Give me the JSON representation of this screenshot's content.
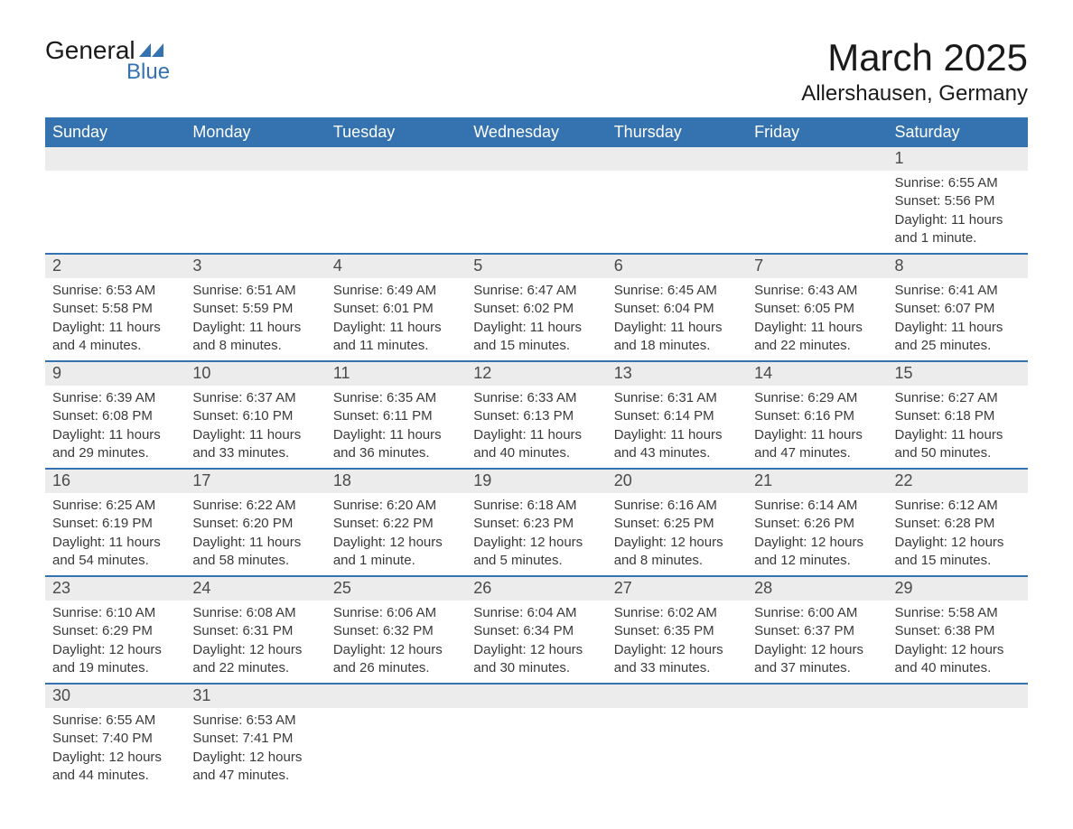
{
  "brand": {
    "name_a": "General",
    "name_b": "Blue",
    "icon_color": "#3572b0"
  },
  "title": "March 2025",
  "location": "Allershausen, Germany",
  "colors": {
    "header_bg": "#3572b0",
    "header_text": "#ffffff",
    "daynum_bg": "#ececec",
    "border": "#3572b0"
  },
  "weekdays": [
    "Sunday",
    "Monday",
    "Tuesday",
    "Wednesday",
    "Thursday",
    "Friday",
    "Saturday"
  ],
  "weeks": [
    [
      {
        "n": "",
        "blank": true
      },
      {
        "n": "",
        "blank": true
      },
      {
        "n": "",
        "blank": true
      },
      {
        "n": "",
        "blank": true
      },
      {
        "n": "",
        "blank": true
      },
      {
        "n": "",
        "blank": true
      },
      {
        "n": "1",
        "sunrise": "Sunrise: 6:55 AM",
        "sunset": "Sunset: 5:56 PM",
        "day1": "Daylight: 11 hours",
        "day2": "and 1 minute."
      }
    ],
    [
      {
        "n": "2",
        "sunrise": "Sunrise: 6:53 AM",
        "sunset": "Sunset: 5:58 PM",
        "day1": "Daylight: 11 hours",
        "day2": "and 4 minutes."
      },
      {
        "n": "3",
        "sunrise": "Sunrise: 6:51 AM",
        "sunset": "Sunset: 5:59 PM",
        "day1": "Daylight: 11 hours",
        "day2": "and 8 minutes."
      },
      {
        "n": "4",
        "sunrise": "Sunrise: 6:49 AM",
        "sunset": "Sunset: 6:01 PM",
        "day1": "Daylight: 11 hours",
        "day2": "and 11 minutes."
      },
      {
        "n": "5",
        "sunrise": "Sunrise: 6:47 AM",
        "sunset": "Sunset: 6:02 PM",
        "day1": "Daylight: 11 hours",
        "day2": "and 15 minutes."
      },
      {
        "n": "6",
        "sunrise": "Sunrise: 6:45 AM",
        "sunset": "Sunset: 6:04 PM",
        "day1": "Daylight: 11 hours",
        "day2": "and 18 minutes."
      },
      {
        "n": "7",
        "sunrise": "Sunrise: 6:43 AM",
        "sunset": "Sunset: 6:05 PM",
        "day1": "Daylight: 11 hours",
        "day2": "and 22 minutes."
      },
      {
        "n": "8",
        "sunrise": "Sunrise: 6:41 AM",
        "sunset": "Sunset: 6:07 PM",
        "day1": "Daylight: 11 hours",
        "day2": "and 25 minutes."
      }
    ],
    [
      {
        "n": "9",
        "sunrise": "Sunrise: 6:39 AM",
        "sunset": "Sunset: 6:08 PM",
        "day1": "Daylight: 11 hours",
        "day2": "and 29 minutes."
      },
      {
        "n": "10",
        "sunrise": "Sunrise: 6:37 AM",
        "sunset": "Sunset: 6:10 PM",
        "day1": "Daylight: 11 hours",
        "day2": "and 33 minutes."
      },
      {
        "n": "11",
        "sunrise": "Sunrise: 6:35 AM",
        "sunset": "Sunset: 6:11 PM",
        "day1": "Daylight: 11 hours",
        "day2": "and 36 minutes."
      },
      {
        "n": "12",
        "sunrise": "Sunrise: 6:33 AM",
        "sunset": "Sunset: 6:13 PM",
        "day1": "Daylight: 11 hours",
        "day2": "and 40 minutes."
      },
      {
        "n": "13",
        "sunrise": "Sunrise: 6:31 AM",
        "sunset": "Sunset: 6:14 PM",
        "day1": "Daylight: 11 hours",
        "day2": "and 43 minutes."
      },
      {
        "n": "14",
        "sunrise": "Sunrise: 6:29 AM",
        "sunset": "Sunset: 6:16 PM",
        "day1": "Daylight: 11 hours",
        "day2": "and 47 minutes."
      },
      {
        "n": "15",
        "sunrise": "Sunrise: 6:27 AM",
        "sunset": "Sunset: 6:18 PM",
        "day1": "Daylight: 11 hours",
        "day2": "and 50 minutes."
      }
    ],
    [
      {
        "n": "16",
        "sunrise": "Sunrise: 6:25 AM",
        "sunset": "Sunset: 6:19 PM",
        "day1": "Daylight: 11 hours",
        "day2": "and 54 minutes."
      },
      {
        "n": "17",
        "sunrise": "Sunrise: 6:22 AM",
        "sunset": "Sunset: 6:20 PM",
        "day1": "Daylight: 11 hours",
        "day2": "and 58 minutes."
      },
      {
        "n": "18",
        "sunrise": "Sunrise: 6:20 AM",
        "sunset": "Sunset: 6:22 PM",
        "day1": "Daylight: 12 hours",
        "day2": "and 1 minute."
      },
      {
        "n": "19",
        "sunrise": "Sunrise: 6:18 AM",
        "sunset": "Sunset: 6:23 PM",
        "day1": "Daylight: 12 hours",
        "day2": "and 5 minutes."
      },
      {
        "n": "20",
        "sunrise": "Sunrise: 6:16 AM",
        "sunset": "Sunset: 6:25 PM",
        "day1": "Daylight: 12 hours",
        "day2": "and 8 minutes."
      },
      {
        "n": "21",
        "sunrise": "Sunrise: 6:14 AM",
        "sunset": "Sunset: 6:26 PM",
        "day1": "Daylight: 12 hours",
        "day2": "and 12 minutes."
      },
      {
        "n": "22",
        "sunrise": "Sunrise: 6:12 AM",
        "sunset": "Sunset: 6:28 PM",
        "day1": "Daylight: 12 hours",
        "day2": "and 15 minutes."
      }
    ],
    [
      {
        "n": "23",
        "sunrise": "Sunrise: 6:10 AM",
        "sunset": "Sunset: 6:29 PM",
        "day1": "Daylight: 12 hours",
        "day2": "and 19 minutes."
      },
      {
        "n": "24",
        "sunrise": "Sunrise: 6:08 AM",
        "sunset": "Sunset: 6:31 PM",
        "day1": "Daylight: 12 hours",
        "day2": "and 22 minutes."
      },
      {
        "n": "25",
        "sunrise": "Sunrise: 6:06 AM",
        "sunset": "Sunset: 6:32 PM",
        "day1": "Daylight: 12 hours",
        "day2": "and 26 minutes."
      },
      {
        "n": "26",
        "sunrise": "Sunrise: 6:04 AM",
        "sunset": "Sunset: 6:34 PM",
        "day1": "Daylight: 12 hours",
        "day2": "and 30 minutes."
      },
      {
        "n": "27",
        "sunrise": "Sunrise: 6:02 AM",
        "sunset": "Sunset: 6:35 PM",
        "day1": "Daylight: 12 hours",
        "day2": "and 33 minutes."
      },
      {
        "n": "28",
        "sunrise": "Sunrise: 6:00 AM",
        "sunset": "Sunset: 6:37 PM",
        "day1": "Daylight: 12 hours",
        "day2": "and 37 minutes."
      },
      {
        "n": "29",
        "sunrise": "Sunrise: 5:58 AM",
        "sunset": "Sunset: 6:38 PM",
        "day1": "Daylight: 12 hours",
        "day2": "and 40 minutes."
      }
    ],
    [
      {
        "n": "30",
        "sunrise": "Sunrise: 6:55 AM",
        "sunset": "Sunset: 7:40 PM",
        "day1": "Daylight: 12 hours",
        "day2": "and 44 minutes."
      },
      {
        "n": "31",
        "sunrise": "Sunrise: 6:53 AM",
        "sunset": "Sunset: 7:41 PM",
        "day1": "Daylight: 12 hours",
        "day2": "and 47 minutes."
      },
      {
        "n": "",
        "blank": true
      },
      {
        "n": "",
        "blank": true
      },
      {
        "n": "",
        "blank": true
      },
      {
        "n": "",
        "blank": true
      },
      {
        "n": "",
        "blank": true
      }
    ]
  ]
}
